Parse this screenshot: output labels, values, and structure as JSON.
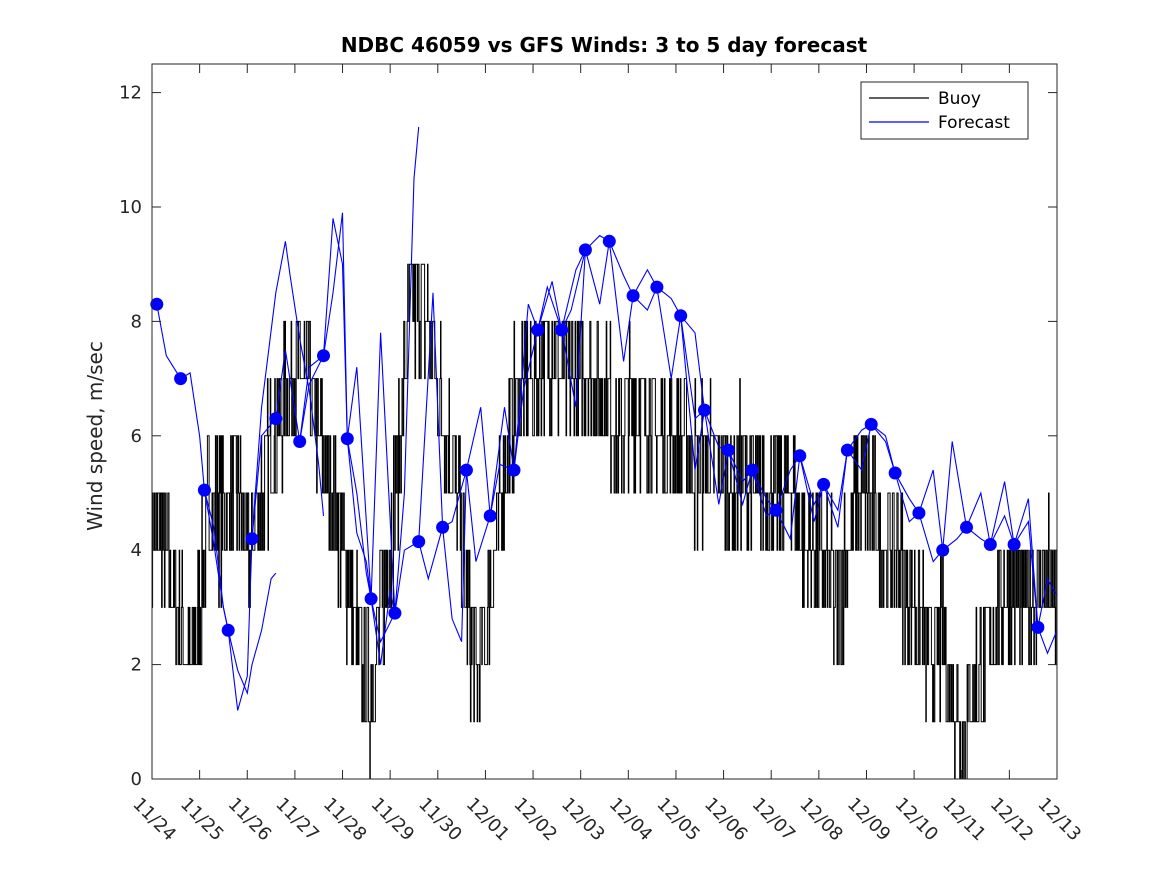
{
  "chart_data": {
    "type": "line",
    "title": "NDBC 46059 vs GFS Winds: 3 to 5 day forecast",
    "xlabel": "",
    "ylabel": "Wind speed, m/sec",
    "xlim": [
      0,
      19
    ],
    "ylim": [
      0,
      12.5
    ],
    "grid": false,
    "legend_location": "top-right",
    "x_tick_labels": [
      "11/24",
      "11/25",
      "11/26",
      "11/27",
      "11/28",
      "11/29",
      "11/30",
      "12/01",
      "12/02",
      "12/03",
      "12/04",
      "12/05",
      "12/06",
      "12/07",
      "12/08",
      "12/09",
      "12/10",
      "12/11",
      "12/12",
      "12/13"
    ],
    "y_ticks": [
      0,
      2,
      4,
      6,
      8,
      10,
      12
    ],
    "colors": {
      "buoy": "#000000",
      "forecast": "#0000ff"
    },
    "legend": [
      "Buoy",
      "Forecast"
    ],
    "buoy_trend": [
      [
        0,
        4.5
      ],
      [
        0.3,
        4
      ],
      [
        0.5,
        3
      ],
      [
        0.8,
        2
      ],
      [
        1.0,
        3
      ],
      [
        1.2,
        5
      ],
      [
        1.5,
        4.5
      ],
      [
        1.8,
        5
      ],
      [
        2.0,
        4
      ],
      [
        2.3,
        5
      ],
      [
        2.6,
        6
      ],
      [
        2.9,
        7
      ],
      [
        3.2,
        7
      ],
      [
        3.5,
        6
      ],
      [
        3.8,
        5
      ],
      [
        4.0,
        4
      ],
      [
        4.2,
        3
      ],
      [
        4.4,
        2
      ],
      [
        4.6,
        1.5
      ],
      [
        4.8,
        3
      ],
      [
        5.0,
        4
      ],
      [
        5.2,
        6
      ],
      [
        5.4,
        8
      ],
      [
        5.6,
        8.5
      ],
      [
        5.8,
        8
      ],
      [
        6.0,
        7
      ],
      [
        6.2,
        6
      ],
      [
        6.4,
        5
      ],
      [
        6.6,
        3
      ],
      [
        6.8,
        2
      ],
      [
        7.0,
        2.5
      ],
      [
        7.2,
        4
      ],
      [
        7.4,
        5.5
      ],
      [
        7.6,
        6.5
      ],
      [
        7.8,
        7
      ],
      [
        8.0,
        7
      ],
      [
        8.2,
        7.5
      ],
      [
        8.4,
        7.5
      ],
      [
        8.6,
        7
      ],
      [
        8.8,
        7
      ],
      [
        9.0,
        7
      ],
      [
        9.2,
        7
      ],
      [
        9.4,
        7
      ],
      [
        9.6,
        6.5
      ],
      [
        9.8,
        6
      ],
      [
        10.0,
        6.5
      ],
      [
        10.2,
        6.5
      ],
      [
        10.4,
        6.5
      ],
      [
        10.6,
        6
      ],
      [
        10.8,
        6
      ],
      [
        11.0,
        6
      ],
      [
        11.2,
        6
      ],
      [
        11.4,
        5.5
      ],
      [
        11.6,
        5.5
      ],
      [
        11.8,
        5.5
      ],
      [
        12.0,
        5.5
      ],
      [
        12.2,
        5
      ],
      [
        12.4,
        5.5
      ],
      [
        12.6,
        5
      ],
      [
        12.8,
        5
      ],
      [
        13.0,
        5
      ],
      [
        13.2,
        5
      ],
      [
        13.4,
        5
      ],
      [
        13.6,
        4.5
      ],
      [
        13.8,
        4
      ],
      [
        14.0,
        4
      ],
      [
        14.2,
        3.5
      ],
      [
        14.4,
        3
      ],
      [
        14.6,
        4
      ],
      [
        14.8,
        5
      ],
      [
        15.0,
        5
      ],
      [
        15.2,
        4.5
      ],
      [
        15.4,
        4
      ],
      [
        15.6,
        4
      ],
      [
        15.8,
        3.5
      ],
      [
        16.0,
        3
      ],
      [
        16.2,
        2.5
      ],
      [
        16.4,
        2
      ],
      [
        16.6,
        2.5
      ],
      [
        16.8,
        1.5
      ],
      [
        17.0,
        1
      ],
      [
        17.2,
        1.5
      ],
      [
        17.4,
        2
      ],
      [
        17.6,
        2.5
      ],
      [
        17.8,
        3
      ],
      [
        18.0,
        3.5
      ],
      [
        18.2,
        3
      ],
      [
        18.4,
        3
      ],
      [
        18.6,
        3.5
      ],
      [
        18.8,
        3.5
      ],
      [
        19.0,
        3
      ]
    ],
    "forecast_points": [
      [
        0.1,
        8.3
      ],
      [
        0.6,
        7.0
      ],
      [
        1.1,
        5.05
      ],
      [
        1.6,
        2.6
      ],
      [
        2.1,
        4.2
      ],
      [
        2.6,
        6.3
      ],
      [
        3.1,
        5.9
      ],
      [
        3.6,
        7.4
      ],
      [
        4.1,
        5.95
      ],
      [
        4.6,
        3.15
      ],
      [
        5.1,
        2.9
      ],
      [
        5.6,
        4.15
      ],
      [
        6.1,
        4.4
      ],
      [
        6.6,
        5.4
      ],
      [
        7.1,
        4.6
      ],
      [
        7.6,
        5.4
      ],
      [
        8.1,
        7.85
      ],
      [
        8.6,
        7.85
      ],
      [
        9.1,
        9.25
      ],
      [
        9.6,
        9.4
      ],
      [
        10.1,
        8.45
      ],
      [
        10.6,
        8.6
      ],
      [
        11.1,
        8.1
      ],
      [
        11.6,
        6.45
      ],
      [
        12.1,
        5.75
      ],
      [
        12.6,
        5.4
      ],
      [
        13.1,
        4.7
      ],
      [
        13.6,
        5.65
      ],
      [
        14.1,
        5.15
      ],
      [
        14.6,
        5.75
      ],
      [
        15.1,
        6.2
      ],
      [
        15.6,
        5.35
      ],
      [
        16.1,
        4.65
      ],
      [
        16.6,
        4.0
      ],
      [
        17.1,
        4.4
      ],
      [
        17.6,
        4.1
      ],
      [
        18.1,
        4.1
      ],
      [
        18.6,
        2.65
      ]
    ],
    "forecast_runs": [
      [
        [
          0.1,
          8.3
        ],
        [
          0.3,
          7.4
        ],
        [
          0.6,
          7.0
        ],
        [
          0.8,
          7.1
        ],
        [
          1.0,
          6.0
        ],
        [
          1.1,
          5.05
        ],
        [
          1.3,
          4.1
        ],
        [
          1.5,
          3.0
        ],
        [
          1.6,
          2.6
        ],
        [
          1.8,
          1.9
        ],
        [
          2.0,
          1.5
        ],
        [
          2.1,
          2.0
        ],
        [
          2.3,
          2.6
        ],
        [
          2.5,
          3.5
        ],
        [
          2.6,
          3.6
        ]
      ],
      [
        [
          1.1,
          5.05
        ],
        [
          1.3,
          4.4
        ],
        [
          1.5,
          3.0
        ],
        [
          1.6,
          2.6
        ],
        [
          1.8,
          1.2
        ],
        [
          2.0,
          1.8
        ],
        [
          2.1,
          4.2
        ],
        [
          2.3,
          6.5
        ],
        [
          2.6,
          8.5
        ],
        [
          2.8,
          9.4
        ],
        [
          2.9,
          8.8
        ],
        [
          3.1,
          7.7
        ],
        [
          3.3,
          6.8
        ],
        [
          3.5,
          5.5
        ],
        [
          3.6,
          4.6
        ]
      ],
      [
        [
          2.1,
          4.2
        ],
        [
          2.3,
          6.0
        ],
        [
          2.6,
          6.3
        ],
        [
          2.8,
          7.5
        ],
        [
          3.1,
          5.9
        ],
        [
          3.3,
          6.9
        ],
        [
          3.6,
          7.4
        ],
        [
          3.8,
          9.8
        ],
        [
          4.0,
          9.0
        ],
        [
          4.1,
          5.95
        ],
        [
          4.3,
          5.0
        ],
        [
          4.5,
          3.6
        ],
        [
          4.6,
          3.15
        ],
        [
          4.8,
          2.0
        ],
        [
          5.0,
          3.3
        ],
        [
          5.1,
          2.9
        ]
      ],
      [
        [
          3.1,
          5.9
        ],
        [
          3.3,
          7.2
        ],
        [
          3.6,
          7.4
        ],
        [
          3.8,
          8.5
        ],
        [
          4.0,
          9.9
        ],
        [
          4.1,
          5.95
        ],
        [
          4.3,
          4.3
        ],
        [
          4.5,
          3.8
        ],
        [
          4.6,
          3.15
        ],
        [
          4.8,
          2.4
        ],
        [
          5.1,
          2.9
        ],
        [
          5.3,
          5.0
        ],
        [
          5.5,
          10.5
        ],
        [
          5.6,
          11.4
        ]
      ],
      [
        [
          4.1,
          5.95
        ],
        [
          4.3,
          7.2
        ],
        [
          4.6,
          3.15
        ],
        [
          4.8,
          7.8
        ],
        [
          5.1,
          2.9
        ],
        [
          5.3,
          4.0
        ],
        [
          5.6,
          4.15
        ],
        [
          5.8,
          3.5
        ],
        [
          6.1,
          4.4
        ],
        [
          6.3,
          2.8
        ],
        [
          6.5,
          2.4
        ],
        [
          6.6,
          5.4
        ],
        [
          6.8,
          3.8
        ],
        [
          7.1,
          4.6
        ],
        [
          7.3,
          5.5
        ],
        [
          7.6,
          5.4
        ],
        [
          7.8,
          6.8
        ],
        [
          8.1,
          7.85
        ],
        [
          8.3,
          8.6
        ],
        [
          8.6,
          7.85
        ],
        [
          8.8,
          8.2
        ],
        [
          9.1,
          9.25
        ]
      ],
      [
        [
          5.6,
          4.15
        ],
        [
          5.9,
          8.5
        ],
        [
          6.1,
          4.4
        ],
        [
          6.3,
          4.5
        ],
        [
          6.6,
          5.4
        ],
        [
          6.9,
          6.5
        ],
        [
          7.1,
          4.6
        ],
        [
          7.4,
          6.5
        ],
        [
          7.6,
          5.4
        ],
        [
          7.9,
          8.3
        ],
        [
          8.1,
          7.85
        ],
        [
          8.4,
          8.7
        ],
        [
          8.6,
          7.85
        ],
        [
          8.9,
          8.9
        ],
        [
          9.1,
          9.25
        ],
        [
          9.4,
          9.5
        ],
        [
          9.6,
          9.4
        ],
        [
          9.9,
          8.8
        ],
        [
          10.1,
          8.45
        ],
        [
          10.4,
          8.9
        ],
        [
          10.6,
          8.6
        ],
        [
          10.9,
          8.4
        ],
        [
          11.1,
          8.1
        ],
        [
          11.4,
          7.8
        ],
        [
          11.6,
          6.45
        ]
      ],
      [
        [
          8.6,
          7.85
        ],
        [
          8.9,
          6.5
        ],
        [
          9.1,
          9.25
        ],
        [
          9.4,
          8.3
        ],
        [
          9.6,
          9.4
        ],
        [
          9.9,
          7.3
        ],
        [
          10.1,
          8.45
        ],
        [
          10.4,
          8.2
        ],
        [
          10.6,
          8.6
        ],
        [
          10.9,
          7.0
        ],
        [
          11.1,
          8.1
        ],
        [
          11.4,
          6.3
        ],
        [
          11.6,
          6.45
        ],
        [
          11.9,
          5.8
        ],
        [
          12.1,
          5.75
        ],
        [
          12.4,
          4.8
        ],
        [
          12.6,
          5.4
        ],
        [
          12.9,
          4.9
        ],
        [
          13.1,
          4.7
        ],
        [
          13.4,
          5.4
        ],
        [
          13.6,
          5.65
        ],
        [
          13.9,
          4.5
        ],
        [
          14.1,
          5.15
        ]
      ],
      [
        [
          11.1,
          8.1
        ],
        [
          11.4,
          5.4
        ],
        [
          11.6,
          6.45
        ],
        [
          11.9,
          4.8
        ],
        [
          12.1,
          5.75
        ],
        [
          12.4,
          5.2
        ],
        [
          12.6,
          5.4
        ],
        [
          12.9,
          4.6
        ],
        [
          13.1,
          4.7
        ],
        [
          13.4,
          4.2
        ],
        [
          13.6,
          5.65
        ],
        [
          13.9,
          4.8
        ],
        [
          14.1,
          5.15
        ],
        [
          14.4,
          4.7
        ],
        [
          14.6,
          5.75
        ],
        [
          14.9,
          6.1
        ],
        [
          15.1,
          6.2
        ],
        [
          15.4,
          5.9
        ],
        [
          15.6,
          5.35
        ],
        [
          15.9,
          4.5
        ],
        [
          16.1,
          4.65
        ],
        [
          16.4,
          3.8
        ],
        [
          16.6,
          4.0
        ],
        [
          16.9,
          4.2
        ],
        [
          17.1,
          4.4
        ],
        [
          17.4,
          4.2
        ],
        [
          17.6,
          4.1
        ],
        [
          17.9,
          4.6
        ],
        [
          18.1,
          4.1
        ],
        [
          18.4,
          4.5
        ],
        [
          18.6,
          2.65
        ],
        [
          18.8,
          2.2
        ],
        [
          19.0,
          2.6
        ]
      ],
      [
        [
          14.1,
          5.15
        ],
        [
          14.4,
          4.4
        ],
        [
          14.6,
          5.75
        ],
        [
          14.9,
          5.4
        ],
        [
          15.1,
          6.2
        ],
        [
          15.4,
          6.0
        ],
        [
          15.6,
          5.35
        ],
        [
          15.9,
          4.9
        ],
        [
          16.1,
          4.65
        ],
        [
          16.4,
          5.4
        ],
        [
          16.6,
          4.0
        ],
        [
          16.8,
          5.9
        ],
        [
          17.1,
          4.4
        ],
        [
          17.4,
          5.0
        ],
        [
          17.6,
          4.1
        ],
        [
          17.9,
          5.2
        ],
        [
          18.1,
          4.1
        ],
        [
          18.4,
          4.9
        ],
        [
          18.6,
          2.65
        ],
        [
          18.8,
          3.5
        ],
        [
          19.0,
          3.2
        ]
      ]
    ]
  }
}
